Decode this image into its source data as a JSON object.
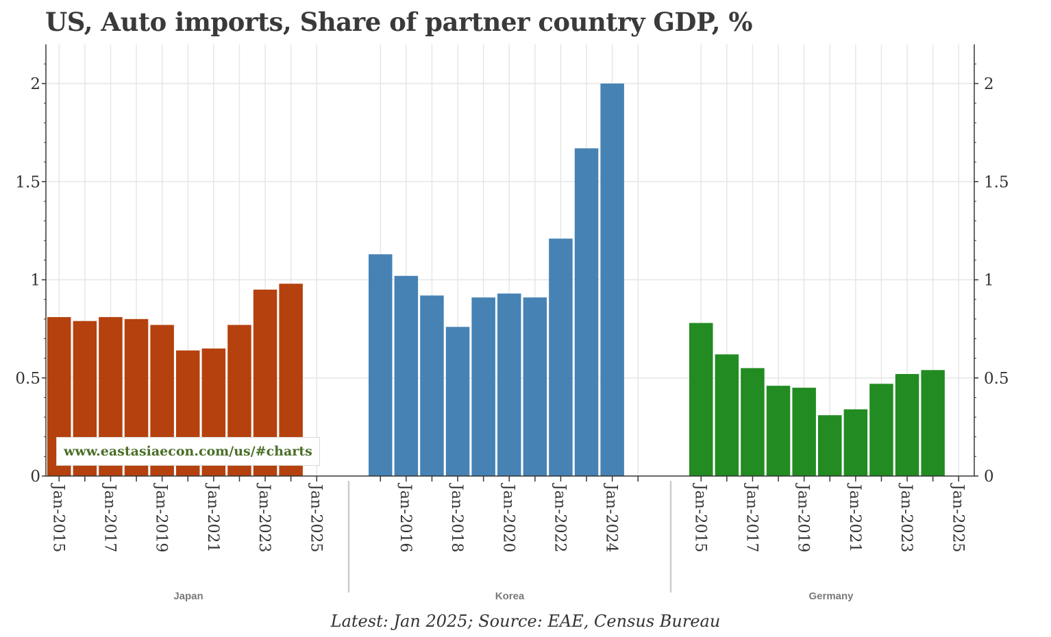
{
  "title": "US, Auto imports, Share of partner country GDP, %",
  "watermark": "www.eastasiaecon.com/us/#charts",
  "caption": "Latest: Jan 2025; Source: EAE, Census Bureau",
  "chart_data": {
    "type": "bar",
    "title": "US, Auto imports, Share of partner country GDP, %",
    "ylim": [
      0,
      2.2
    ],
    "y_ticks": [
      0,
      0.5,
      1,
      1.5,
      2
    ],
    "y_tick_labels": [
      "0",
      "0.5",
      "1",
      "1.5",
      "2"
    ],
    "grid": true,
    "panels": [
      {
        "name": "Japan",
        "color": "#b5410f",
        "x": [
          "Jan-2015",
          "Jan-2016",
          "Jan-2017",
          "Jan-2018",
          "Jan-2019",
          "Jan-2020",
          "Jan-2021",
          "Jan-2022",
          "Jan-2023",
          "Jan-2024"
        ],
        "values": [
          0.81,
          0.79,
          0.81,
          0.8,
          0.77,
          0.64,
          0.65,
          0.77,
          0.95,
          0.98
        ],
        "tick_labels": [
          "Jan-2015",
          "Jan-2017",
          "Jan-2019",
          "Jan-2021",
          "Jan-2023",
          "Jan-2025"
        ]
      },
      {
        "name": "Korea",
        "color": "#4682b4",
        "x": [
          "Jan-2015",
          "Jan-2016",
          "Jan-2017",
          "Jan-2018",
          "Jan-2019",
          "Jan-2020",
          "Jan-2021",
          "Jan-2022",
          "Jan-2023",
          "Jan-2024"
        ],
        "values": [
          1.13,
          1.02,
          0.92,
          0.76,
          0.91,
          0.93,
          0.91,
          1.21,
          1.67,
          2.0
        ],
        "tick_labels": [
          "Jan-2016",
          "Jan-2018",
          "Jan-2020",
          "Jan-2022",
          "Jan-2024"
        ]
      },
      {
        "name": "Germany",
        "color": "#228b22",
        "x": [
          "Jan-2015",
          "Jan-2016",
          "Jan-2017",
          "Jan-2018",
          "Jan-2019",
          "Jan-2020",
          "Jan-2021",
          "Jan-2022",
          "Jan-2023",
          "Jan-2024"
        ],
        "values": [
          0.78,
          0.62,
          0.55,
          0.46,
          0.45,
          0.31,
          0.34,
          0.47,
          0.52,
          0.54
        ],
        "tick_labels": [
          "Jan-2015",
          "Jan-2017",
          "Jan-2019",
          "Jan-2021",
          "Jan-2023",
          "Jan-2025"
        ]
      }
    ]
  }
}
